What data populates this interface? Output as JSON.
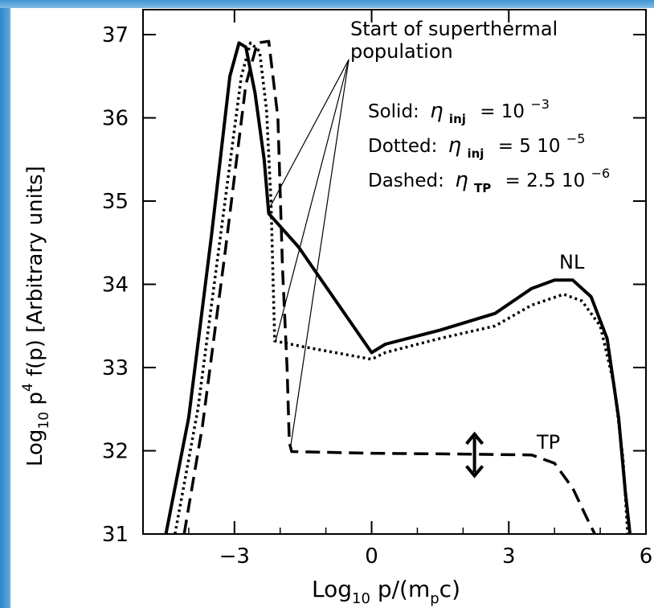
{
  "chart_data": {
    "type": "line",
    "xlabel": "Log10 p/(mpc)",
    "ylabel": "Log10 p4 f(p) [Arbitrary units]",
    "xlim": [
      -5,
      6
    ],
    "ylim": [
      31,
      37.3
    ],
    "x_ticks": [
      -3,
      0,
      3,
      6
    ],
    "x_tick_labels": [
      "−3",
      "0",
      "3",
      "6"
    ],
    "y_ticks": [
      31,
      32,
      33,
      34,
      35,
      36,
      37
    ],
    "y_tick_labels": [
      "31",
      "32",
      "33",
      "34",
      "35",
      "36",
      "37"
    ],
    "series": [
      {
        "name": "Solid",
        "style": "solid",
        "points": [
          [
            -4.5,
            31
          ],
          [
            -4.0,
            32.4
          ],
          [
            -3.5,
            34.6
          ],
          [
            -3.1,
            36.5
          ],
          [
            -2.9,
            36.9
          ],
          [
            -2.75,
            36.85
          ],
          [
            -2.55,
            36.3
          ],
          [
            -2.35,
            35.5
          ],
          [
            -2.25,
            34.85
          ],
          [
            -1.6,
            34.45
          ],
          [
            0.0,
            33.18
          ],
          [
            0.3,
            33.28
          ],
          [
            1.5,
            33.45
          ],
          [
            2.7,
            33.65
          ],
          [
            3.5,
            33.95
          ],
          [
            4.0,
            34.05
          ],
          [
            4.4,
            34.05
          ],
          [
            4.8,
            33.85
          ],
          [
            5.15,
            33.35
          ],
          [
            5.4,
            32.4
          ],
          [
            5.55,
            31.5
          ],
          [
            5.65,
            31.0
          ]
        ]
      },
      {
        "name": "Dotted",
        "style": "dotted",
        "points": [
          [
            -4.3,
            31
          ],
          [
            -3.8,
            32.5
          ],
          [
            -3.3,
            34.6
          ],
          [
            -2.85,
            36.5
          ],
          [
            -2.65,
            36.9
          ],
          [
            -2.45,
            36.8
          ],
          [
            -2.3,
            36.1
          ],
          [
            -2.2,
            35.0
          ],
          [
            -2.12,
            33.32
          ],
          [
            -1.5,
            33.25
          ],
          [
            0.0,
            33.1
          ],
          [
            0.3,
            33.18
          ],
          [
            1.5,
            33.35
          ],
          [
            2.7,
            33.5
          ],
          [
            3.5,
            33.75
          ],
          [
            4.2,
            33.88
          ],
          [
            4.6,
            33.8
          ],
          [
            5.0,
            33.5
          ],
          [
            5.3,
            32.8
          ],
          [
            5.5,
            31.9
          ],
          [
            5.6,
            31.0
          ]
        ]
      },
      {
        "name": "Dashed",
        "style": "dashed",
        "points": [
          [
            -4.1,
            31
          ],
          [
            -3.7,
            32.3
          ],
          [
            -3.2,
            34.4
          ],
          [
            -2.75,
            36.4
          ],
          [
            -2.5,
            36.9
          ],
          [
            -2.25,
            36.92
          ],
          [
            -2.05,
            36.0
          ],
          [
            -1.95,
            34.2
          ],
          [
            -1.85,
            33.0
          ],
          [
            -1.8,
            32.1
          ],
          [
            -1.75,
            31.99
          ],
          [
            0,
            31.97
          ],
          [
            2.0,
            31.96
          ],
          [
            3.5,
            31.95
          ],
          [
            4.0,
            31.85
          ],
          [
            4.4,
            31.55
          ],
          [
            4.7,
            31.2
          ],
          [
            4.88,
            31.0
          ]
        ]
      }
    ],
    "annotations": {
      "start_label": "Start of superthermal",
      "start_label2": "population",
      "legend_solid_prefix": "Solid:",
      "legend_solid_sym": "η",
      "legend_solid_sub": "inj",
      "legend_solid_val": "= 10",
      "legend_solid_exp": "−3",
      "legend_dotted_prefix": "Dotted:",
      "legend_dotted_sym": "η",
      "legend_dotted_sub": "inj",
      "legend_dotted_val": "= 5 10",
      "legend_dotted_exp": "−5",
      "legend_dashed_prefix": "Dashed:",
      "legend_dashed_sym": "η",
      "legend_dashed_sub": "TP",
      "legend_dashed_val": "= 2.5 10",
      "legend_dashed_exp": "−6",
      "nl_label": "NL",
      "tp_label": "TP",
      "pointer_origin": [
        -0.5,
        36.7
      ],
      "pointer_targets": [
        [
          -2.25,
          34.9
        ],
        [
          -2.1,
          33.32
        ],
        [
          -1.78,
          32.02
        ]
      ],
      "double_arrow": {
        "x": 2.25,
        "y_from": 31.7,
        "y_to": 32.2
      }
    },
    "axis_label_parts": {
      "x_main": "Log",
      "x_sub": "10",
      "x_rest": " p/(m",
      "x_sub2": "p",
      "x_end": "c)",
      "y_main": "Log",
      "y_sub": "10",
      "y_rest": " p",
      "y_sup": "4",
      "y_end": " f(p) [Arbitrary units]"
    }
  }
}
